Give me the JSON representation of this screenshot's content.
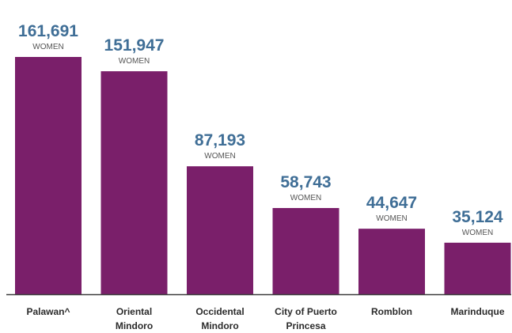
{
  "chart_data": {
    "type": "bar",
    "categories": [
      [
        "Palawan^"
      ],
      [
        "Oriental",
        "Mindoro"
      ],
      [
        "Occidental",
        "Mindoro"
      ],
      [
        "City of Puerto",
        "Princesa"
      ],
      [
        "Romblon"
      ],
      [
        "Marinduque"
      ]
    ],
    "values": [
      161691,
      151947,
      87193,
      58743,
      44647,
      35124
    ],
    "value_labels": [
      "161,691",
      "151,947",
      "87,193",
      "58,743",
      "44,647",
      "35,124"
    ],
    "unit_label": "WOMEN",
    "ylim": [
      0,
      170000
    ],
    "grid": false,
    "bar_color": "#7a1f6a",
    "value_color": "#3f6e96",
    "axis_color": "#3a3a3a"
  }
}
